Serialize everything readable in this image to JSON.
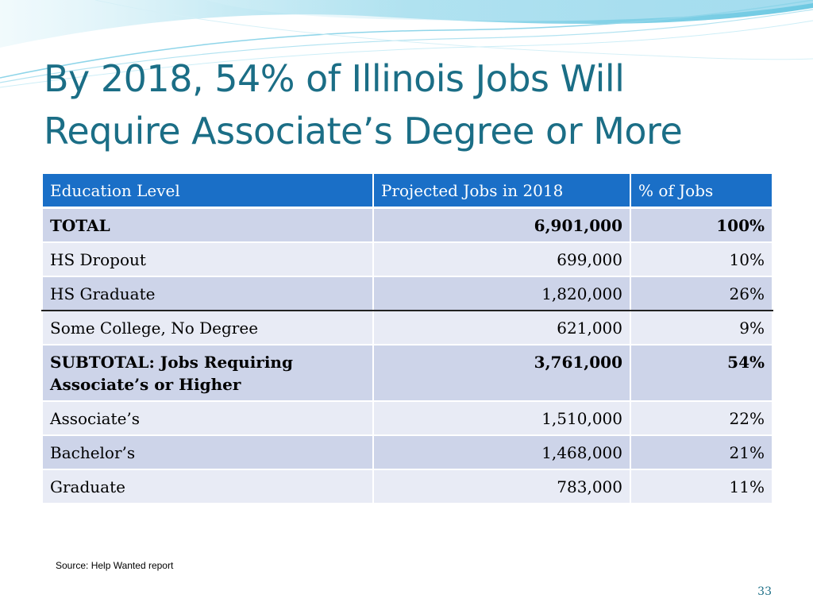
{
  "slide": {
    "title_line1": "By 2018, 54% of Illinois Jobs Will",
    "title_line2": "Require Associate’s Degree or More",
    "source": "Source: Help Wanted report",
    "page_number": "33"
  },
  "colors": {
    "title": "#1b6e86",
    "header_bg": "#1a6fc7",
    "row_dark": "#cdd4e9",
    "row_light": "#e8ebf5",
    "wave": "#7fd0e6"
  },
  "table": {
    "headers": [
      "Education Level",
      "Projected Jobs in 2018",
      "% of Jobs"
    ],
    "rows": [
      {
        "level": "TOTAL",
        "jobs": "6,901,000",
        "pct": "100%"
      },
      {
        "level": "HS Dropout",
        "jobs": "699,000",
        "pct": "10%"
      },
      {
        "level": "HS Graduate",
        "jobs": "1,820,000",
        "pct": "26%"
      },
      {
        "level": "Some College, No Degree",
        "jobs": "621,000",
        "pct": "9%"
      },
      {
        "level_line1": "SUBTOTAL:  Jobs Requiring",
        "level_line2": "Associate’s or Higher",
        "jobs": "3,761,000",
        "pct": "54%"
      },
      {
        "level": "Associate’s",
        "jobs": "1,510,000",
        "pct": "22%"
      },
      {
        "level": "Bachelor’s",
        "jobs": "1,468,000",
        "pct": "21%"
      },
      {
        "level": "Graduate",
        "jobs": "783,000",
        "pct": "11%"
      }
    ]
  }
}
